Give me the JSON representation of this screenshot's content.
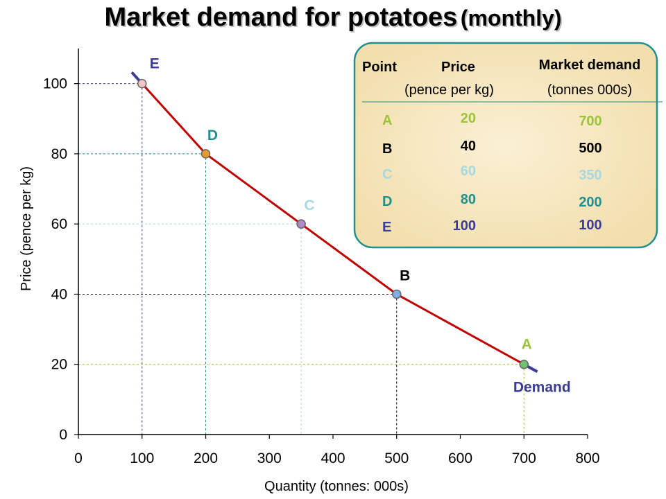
{
  "chart_data": {
    "type": "line",
    "title": "Market demand for potatoes",
    "title_suffix": "(monthly)",
    "xlabel": "Quantity (tonnes: 000s)",
    "ylabel": "Price (pence per kg)",
    "xlim": [
      0,
      800
    ],
    "ylim": [
      0,
      110
    ],
    "x_ticks": [
      0,
      100,
      200,
      300,
      400,
      500,
      600,
      700,
      800
    ],
    "y_ticks": [
      0,
      20,
      40,
      60,
      80,
      100
    ],
    "curve_label": "Demand",
    "curve_color": "#c00000",
    "curve_end_color": "#3b3b98",
    "points": [
      {
        "label": "E",
        "x": 100,
        "y": 100,
        "color": "#3b3b98",
        "fill": "#f2c4c4"
      },
      {
        "label": "D",
        "x": 200,
        "y": 80,
        "color": "#1f8f8f",
        "fill": "#e89a2a"
      },
      {
        "label": "C",
        "x": 350,
        "y": 60,
        "color": "#a8d8e0",
        "fill": "#b388c8"
      },
      {
        "label": "B",
        "x": 500,
        "y": 40,
        "color": "#000000",
        "fill": "#7fb0e6"
      },
      {
        "label": "A",
        "x": 700,
        "y": 20,
        "color": "#9cc43a",
        "fill": "#6cc46c"
      }
    ]
  },
  "table": {
    "headers": {
      "point": "Point",
      "price": "Price",
      "price_unit": "(pence per kg)",
      "demand": "Market demand",
      "demand_unit": "(tonnes 000s)"
    },
    "rows": [
      {
        "point": "A",
        "price": "20",
        "demand": "700",
        "color": "#9cc43a"
      },
      {
        "point": "B",
        "price": "40",
        "demand": "500",
        "color": "#000000"
      },
      {
        "point": "C",
        "price": "60",
        "demand": "350",
        "color": "#a8d8e0"
      },
      {
        "point": "D",
        "price": "80",
        "demand": "200",
        "color": "#1f8f8f"
      },
      {
        "point": "E",
        "price": "100",
        "demand": "100",
        "color": "#3b3b98"
      }
    ]
  }
}
